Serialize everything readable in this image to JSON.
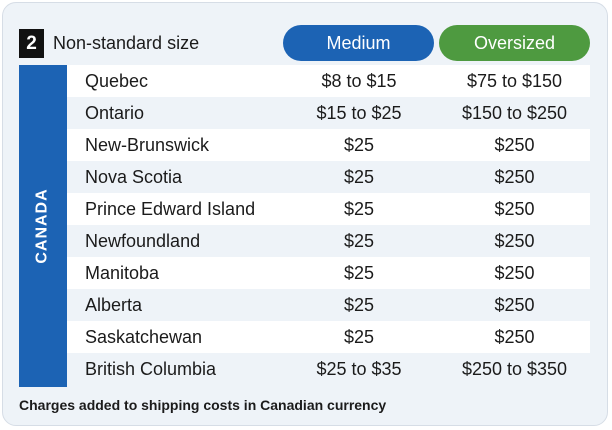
{
  "header": {
    "step_number": "2",
    "title": "Non-standard size",
    "col_medium": "Medium",
    "col_oversized": "Oversized"
  },
  "region": "CANADA",
  "rows": [
    {
      "province": "Quebec",
      "medium": "$8 to $15",
      "oversized": "$75 to $150"
    },
    {
      "province": "Ontario",
      "medium": "$15 to $25",
      "oversized": "$150 to $250"
    },
    {
      "province": "New-Brunswick",
      "medium": "$25",
      "oversized": "$250"
    },
    {
      "province": "Nova Scotia",
      "medium": "$25",
      "oversized": "$250"
    },
    {
      "province": "Prince Edward Island",
      "medium": "$25",
      "oversized": "$250"
    },
    {
      "province": "Newfoundland",
      "medium": "$25",
      "oversized": "$250"
    },
    {
      "province": "Manitoba",
      "medium": "$25",
      "oversized": "$250"
    },
    {
      "province": "Alberta",
      "medium": "$25",
      "oversized": "$250"
    },
    {
      "province": "Saskatchewan",
      "medium": "$25",
      "oversized": "$250"
    },
    {
      "province": "British Columbia",
      "medium": "$25 to $35",
      "oversized": "$250 to $350"
    }
  ],
  "footnote": "Charges added to shipping costs in Canadian currency",
  "colors": {
    "medium": "#1c63b4",
    "oversized": "#4e9a40",
    "card_background": "#eef3f8"
  }
}
